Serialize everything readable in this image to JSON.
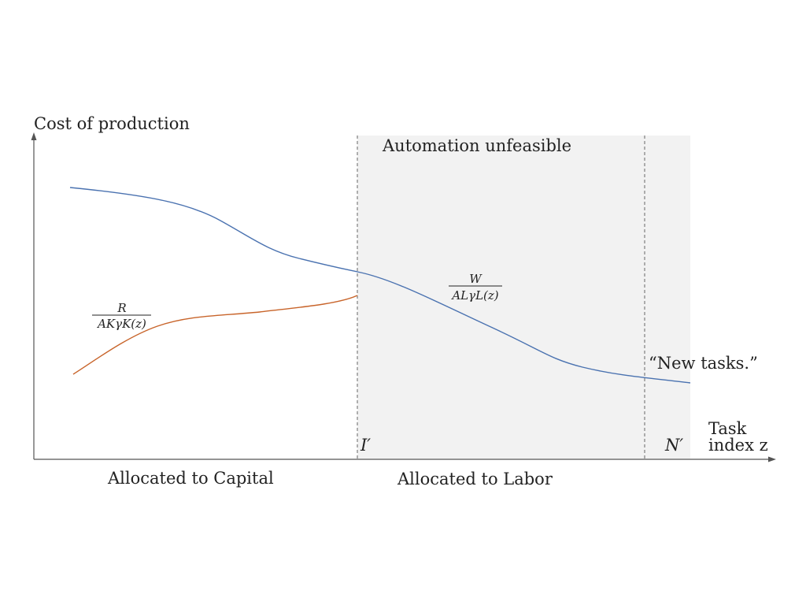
{
  "y_axis_label": "Cost of production",
  "x_axis_label_line1": "Task",
  "x_axis_label_line2": "index z",
  "region_label": "Automation unfeasible",
  "capital_label": "Allocated to Capital",
  "labor_label": "Allocated to Labor",
  "new_tasks_label": "“New tasks.”",
  "I_marker": "I′",
  "N_marker": "N′",
  "capital_cost_label": {
    "numerator": "R",
    "denominator": "AKγK(z)"
  },
  "labor_cost_label": {
    "numerator": "W",
    "denominator": "ALγL(z)"
  },
  "colors": {
    "labor_curve": "#4a72b0",
    "capital_curve": "#c8642a",
    "shaded_region": "#f2f2f2",
    "axis": "#555555",
    "dashed": "#666666"
  }
}
